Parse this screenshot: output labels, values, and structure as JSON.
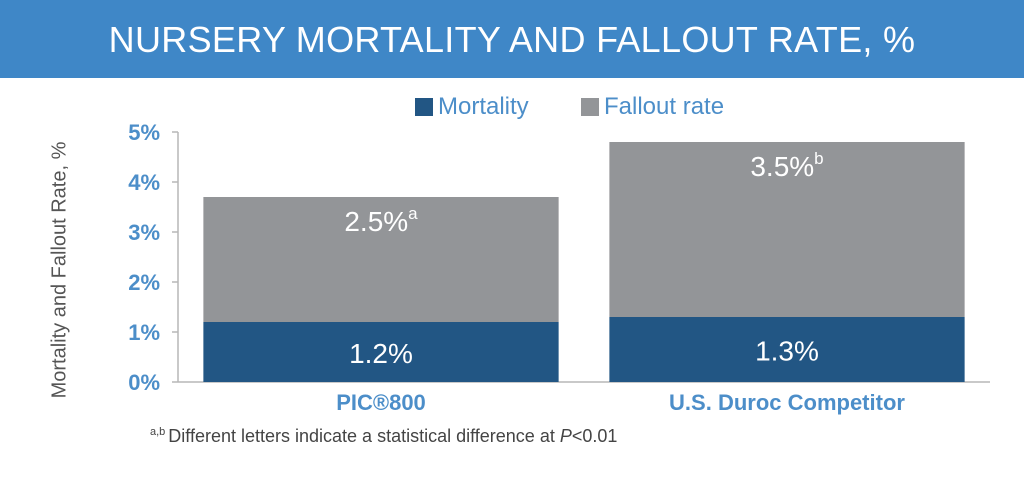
{
  "header": {
    "title": "NURSERY MORTALITY AND FALLOUT RATE, %"
  },
  "chart_data": {
    "type": "bar",
    "stacked": true,
    "categories": [
      "PIC®800",
      "U.S. Duroc Competitor"
    ],
    "series": [
      {
        "name": "Mortality",
        "values": [
          1.2,
          1.3
        ],
        "color": "#225684",
        "labels": [
          "1.2%",
          "1.3%"
        ],
        "superscripts": [
          "",
          ""
        ]
      },
      {
        "name": "Fallout rate",
        "values": [
          2.5,
          3.5
        ],
        "color": "#939598",
        "labels": [
          "2.5%",
          "3.5%"
        ],
        "superscripts": [
          "a",
          "b"
        ]
      }
    ],
    "ylabel": "Mortality and Fallout Rate, %",
    "ylim": [
      0,
      5
    ],
    "yticks": [
      "0%",
      "1%",
      "2%",
      "3%",
      "4%",
      "5%"
    ],
    "legend_position": "top",
    "grid": false
  },
  "footnote": {
    "superscript": "a,b",
    "text": "Different letters indicate a statistical difference at ",
    "pvalue_symbol": "P",
    "pvalue_text": "<0.01"
  },
  "colors": {
    "title_bg": "#3f87c7",
    "tick_text": "#4c8ec9",
    "axis": "#b7b7b7"
  }
}
